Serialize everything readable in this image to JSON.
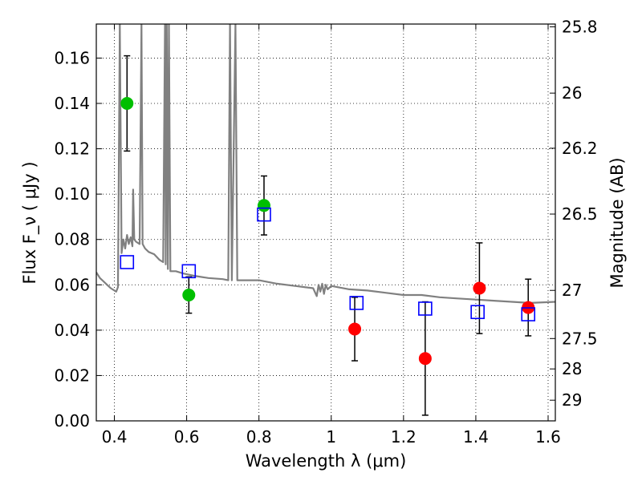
{
  "chart_data": {
    "type": "scatter",
    "xlabel": "Wavelength  λ (μm)",
    "ylabel": "Flux  F_ν  ( μJy )",
    "y2label": "Magnitude (AB)",
    "xlim": [
      0.35,
      1.62
    ],
    "ylim": [
      0.0,
      0.175
    ],
    "grid": true,
    "x_ticks": [
      {
        "value": 0.4,
        "label": "0.4"
      },
      {
        "value": 0.6,
        "label": "0.6"
      },
      {
        "value": 0.8,
        "label": "0.8"
      },
      {
        "value": 1.0,
        "label": "1"
      },
      {
        "value": 1.2,
        "label": "1.2"
      },
      {
        "value": 1.4,
        "label": "1.4"
      },
      {
        "value": 1.6,
        "label": "1.6"
      }
    ],
    "y_ticks": [
      {
        "value": 0.0,
        "label": "0.00"
      },
      {
        "value": 0.02,
        "label": "0.02"
      },
      {
        "value": 0.04,
        "label": "0.04"
      },
      {
        "value": 0.06,
        "label": "0.06"
      },
      {
        "value": 0.08,
        "label": "0.08"
      },
      {
        "value": 0.1,
        "label": "0.10"
      },
      {
        "value": 0.12,
        "label": "0.12"
      },
      {
        "value": 0.14,
        "label": "0.14"
      },
      {
        "value": 0.16,
        "label": "0.16"
      }
    ],
    "mag_ticks": [
      {
        "mag": 25.8,
        "label": "25.8"
      },
      {
        "mag": 26.0,
        "label": "26"
      },
      {
        "mag": 26.2,
        "label": "26.2"
      },
      {
        "mag": 26.5,
        "label": "26.5"
      },
      {
        "mag": 27.0,
        "label": "27"
      },
      {
        "mag": 27.5,
        "label": "27.5"
      },
      {
        "mag": 28.0,
        "label": "28"
      },
      {
        "mag": 29.0,
        "label": "29"
      }
    ],
    "series": [
      {
        "marker": "circle",
        "color": "#00bf00",
        "points": [
          {
            "x": 0.435,
            "y": 0.14,
            "yerr": 0.021
          },
          {
            "x": 0.606,
            "y": 0.0555,
            "yerr": 0.008
          },
          {
            "x": 0.814,
            "y": 0.095,
            "yerr": 0.013
          }
        ]
      },
      {
        "marker": "circle",
        "color": "#ff0000",
        "points": [
          {
            "x": 1.065,
            "y": 0.0405,
            "yerr": 0.014
          },
          {
            "x": 1.26,
            "y": 0.0275,
            "yerr": 0.025
          },
          {
            "x": 1.41,
            "y": 0.0585,
            "yerr": 0.02
          },
          {
            "x": 1.545,
            "y": 0.05,
            "yerr": 0.0125
          }
        ]
      },
      {
        "marker": "square",
        "color": "#0000ff",
        "points": [
          {
            "x": 0.435,
            "y": 0.07
          },
          {
            "x": 0.606,
            "y": 0.066
          },
          {
            "x": 0.814,
            "y": 0.091
          },
          {
            "x": 1.07,
            "y": 0.052
          },
          {
            "x": 1.26,
            "y": 0.0495
          },
          {
            "x": 1.405,
            "y": 0.048
          },
          {
            "x": 1.545,
            "y": 0.047
          }
        ]
      },
      {
        "type": "line",
        "color": "#808080",
        "points": [
          [
            0.35,
            0.0655
          ],
          [
            0.36,
            0.063
          ],
          [
            0.38,
            0.06
          ],
          [
            0.39,
            0.0585
          ],
          [
            0.405,
            0.057
          ],
          [
            0.41,
            0.059
          ],
          [
            0.415,
            0.175
          ],
          [
            0.42,
            0.074
          ],
          [
            0.425,
            0.08
          ],
          [
            0.43,
            0.076
          ],
          [
            0.435,
            0.082
          ],
          [
            0.44,
            0.078
          ],
          [
            0.445,
            0.081
          ],
          [
            0.45,
            0.077
          ],
          [
            0.452,
            0.102
          ],
          [
            0.455,
            0.08
          ],
          [
            0.46,
            0.079
          ],
          [
            0.47,
            0.078
          ],
          [
            0.475,
            0.175
          ],
          [
            0.478,
            0.078
          ],
          [
            0.485,
            0.076
          ],
          [
            0.495,
            0.0745
          ],
          [
            0.51,
            0.0735
          ],
          [
            0.525,
            0.071
          ],
          [
            0.535,
            0.07
          ],
          [
            0.54,
            0.175
          ],
          [
            0.542,
            0.069
          ],
          [
            0.545,
            0.175
          ],
          [
            0.548,
            0.067
          ],
          [
            0.551,
            0.175
          ],
          [
            0.555,
            0.066
          ],
          [
            0.57,
            0.066
          ],
          [
            0.59,
            0.065
          ],
          [
            0.62,
            0.064
          ],
          [
            0.66,
            0.063
          ],
          [
            0.7,
            0.0625
          ],
          [
            0.715,
            0.062
          ],
          [
            0.72,
            0.175
          ],
          [
            0.725,
            0.062
          ],
          [
            0.735,
            0.175
          ],
          [
            0.74,
            0.062
          ],
          [
            0.76,
            0.062
          ],
          [
            0.8,
            0.062
          ],
          [
            0.85,
            0.0605
          ],
          [
            0.9,
            0.0595
          ],
          [
            0.95,
            0.0585
          ],
          [
            0.96,
            0.055
          ],
          [
            0.965,
            0.06
          ],
          [
            0.97,
            0.057
          ],
          [
            0.975,
            0.0605
          ],
          [
            0.98,
            0.056
          ],
          [
            0.985,
            0.06
          ],
          [
            0.99,
            0.058
          ],
          [
            1.0,
            0.0595
          ],
          [
            1.05,
            0.058
          ],
          [
            1.1,
            0.0575
          ],
          [
            1.15,
            0.0565
          ],
          [
            1.2,
            0.0555
          ],
          [
            1.25,
            0.0555
          ],
          [
            1.3,
            0.0545
          ],
          [
            1.35,
            0.054
          ],
          [
            1.4,
            0.0535
          ],
          [
            1.45,
            0.053
          ],
          [
            1.5,
            0.0525
          ],
          [
            1.55,
            0.052
          ],
          [
            1.62,
            0.0525
          ]
        ]
      }
    ]
  }
}
